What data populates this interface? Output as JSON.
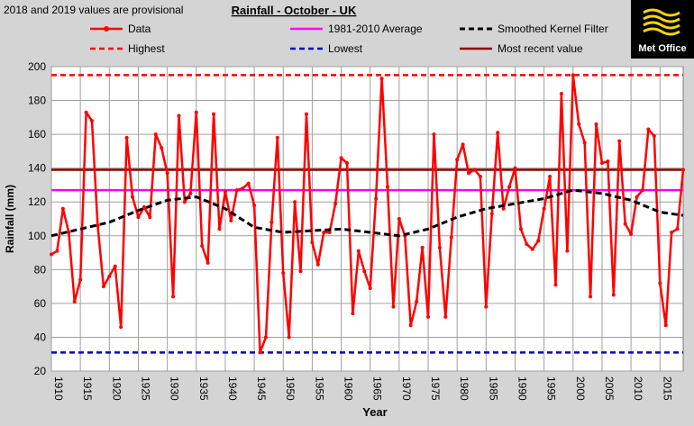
{
  "note": "2018 and 2019 values are provisional",
  "logo": {
    "text": "Met Office"
  },
  "colors": {
    "background": "#d4d4d4",
    "data": "#ff0000",
    "average": "#ff00ff",
    "smoothed": "#000000",
    "highest": "#ff0000",
    "lowest": "#0000cc",
    "recent": "#8b0000"
  },
  "chart_data": {
    "type": "line",
    "title": "Rainfall - October - UK",
    "xlabel": "Year",
    "ylabel": "Rainfall (mm)",
    "xlim": [
      1910,
      2019
    ],
    "ylim": [
      20,
      200
    ],
    "grid": true,
    "x_ticks": [
      1910,
      1915,
      1920,
      1925,
      1930,
      1935,
      1940,
      1945,
      1950,
      1955,
      1960,
      1965,
      1970,
      1975,
      1980,
      1985,
      1990,
      1995,
      2000,
      2005,
      2010,
      2015
    ],
    "y_ticks": [
      20,
      40,
      60,
      80,
      100,
      120,
      140,
      160,
      180,
      200
    ],
    "legend": [
      {
        "key": "data",
        "label": "Data"
      },
      {
        "key": "average",
        "label": "1981-2010 Average"
      },
      {
        "key": "smoothed",
        "label": "Smoothed Kernel Filter"
      },
      {
        "key": "highest",
        "label": "Highest"
      },
      {
        "key": "lowest",
        "label": "Lowest"
      },
      {
        "key": "recent",
        "label": "Most recent value"
      }
    ],
    "series": [
      {
        "name": "Data",
        "x_start": 1910,
        "values": [
          89,
          91,
          116,
          102,
          61,
          74,
          173,
          168,
          106,
          70,
          76,
          82,
          46,
          158,
          123,
          111,
          117,
          111,
          160,
          152,
          137,
          64,
          171,
          120,
          125,
          173,
          94,
          84,
          172,
          104,
          126,
          109,
          127,
          128,
          131,
          118,
          31,
          40,
          108,
          158,
          78,
          40,
          120,
          79,
          172,
          96,
          83,
          102,
          102,
          119,
          146,
          143,
          54,
          91,
          79,
          69,
          122,
          193,
          129,
          58,
          110,
          100,
          47,
          61,
          93,
          52,
          160,
          93,
          52,
          99,
          145,
          154,
          137,
          139,
          135,
          58,
          113,
          161,
          116,
          129,
          140,
          104,
          95,
          92,
          97,
          116,
          135,
          71,
          184,
          91,
          195,
          166,
          155,
          64,
          166,
          143,
          144,
          65,
          156,
          107,
          101,
          123,
          127,
          163,
          159,
          72,
          47,
          102,
          104,
          139
        ]
      },
      {
        "name": "Smoothed Kernel Filter",
        "x": [
          1910,
          1915,
          1920,
          1925,
          1930,
          1935,
          1940,
          1945,
          1950,
          1955,
          1960,
          1965,
          1970,
          1975,
          1980,
          1985,
          1990,
          1995,
          2000,
          2005,
          2010,
          2015,
          2019
        ],
        "values": [
          100,
          104,
          108,
          115,
          121,
          123,
          116,
          105,
          102,
          103,
          104,
          102,
          100,
          104,
          111,
          116,
          119,
          122,
          127,
          125,
          121,
          114,
          112
        ]
      }
    ],
    "reference_lines": {
      "average": 127,
      "highest": 195,
      "lowest": 31,
      "recent": 139
    }
  }
}
